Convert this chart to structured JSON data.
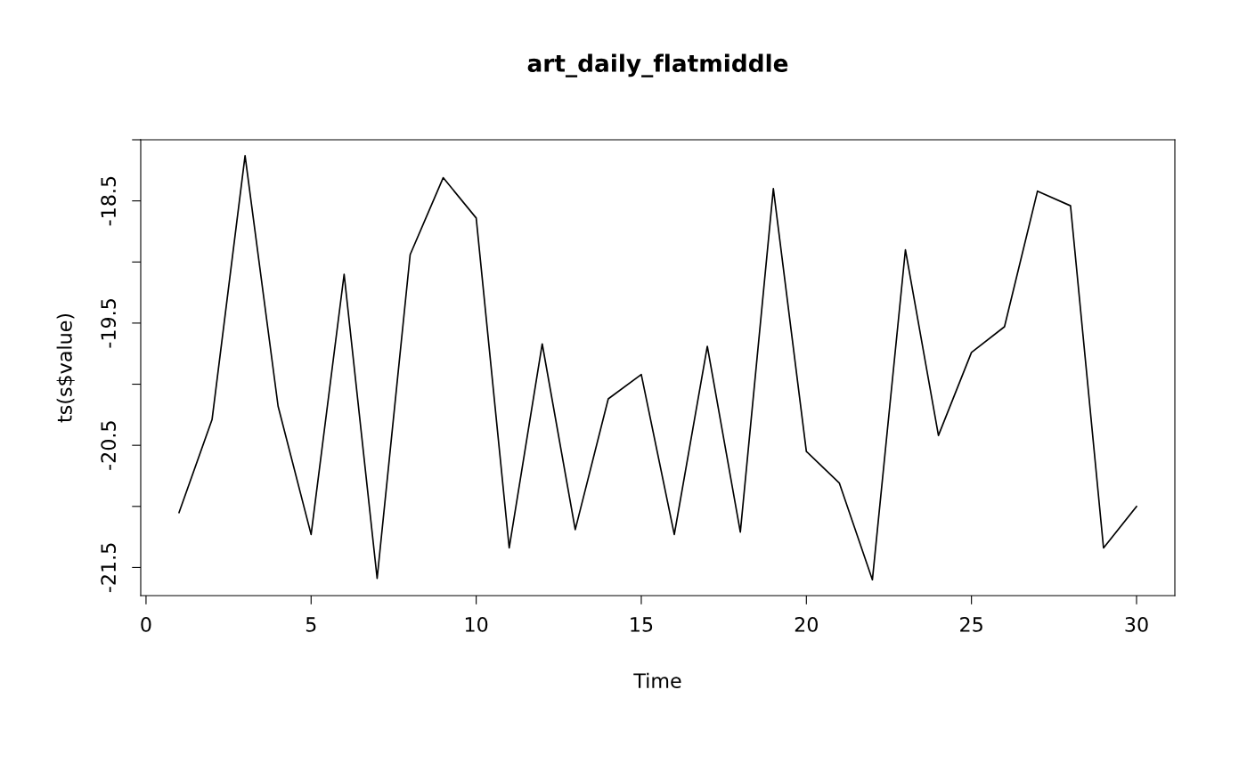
{
  "chart_data": {
    "type": "line",
    "title": "art_daily_flatmiddle",
    "xlabel": "Time",
    "ylabel": "ts(s$value)",
    "x": [
      1,
      2,
      3,
      4,
      5,
      6,
      7,
      8,
      9,
      10,
      11,
      12,
      13,
      14,
      15,
      16,
      17,
      18,
      19,
      20,
      21,
      22,
      23,
      24,
      25,
      26,
      27,
      28,
      29,
      30
    ],
    "series": [
      {
        "color": "#000000",
        "values": [
          -21.05,
          -20.29,
          -18.13,
          -20.18,
          -21.23,
          -19.1,
          -21.59,
          -18.94,
          -18.31,
          -18.64,
          -21.34,
          -19.67,
          -21.19,
          -20.12,
          -19.92,
          -21.23,
          -19.69,
          -21.21,
          -18.4,
          -20.55,
          -20.81,
          -21.6,
          -18.9,
          -20.42,
          -19.74,
          -19.53,
          -18.42,
          -18.54,
          -21.34,
          -21.0
        ]
      }
    ],
    "xlim": [
      -0.16,
      31.16
    ],
    "xticks": [
      0,
      5,
      10,
      15,
      20,
      25,
      30
    ],
    "ylim": [
      -21.73,
      -18.0
    ],
    "yticks": [
      {
        "value": -18,
        "label": null
      },
      -18.5,
      {
        "value": -19,
        "label": null
      },
      -19.5,
      {
        "value": -20,
        "label": null
      },
      -20.5,
      {
        "value": -21,
        "label": null
      },
      -21.5
    ],
    "grid": false,
    "marker": "none",
    "line_style": "solid"
  }
}
